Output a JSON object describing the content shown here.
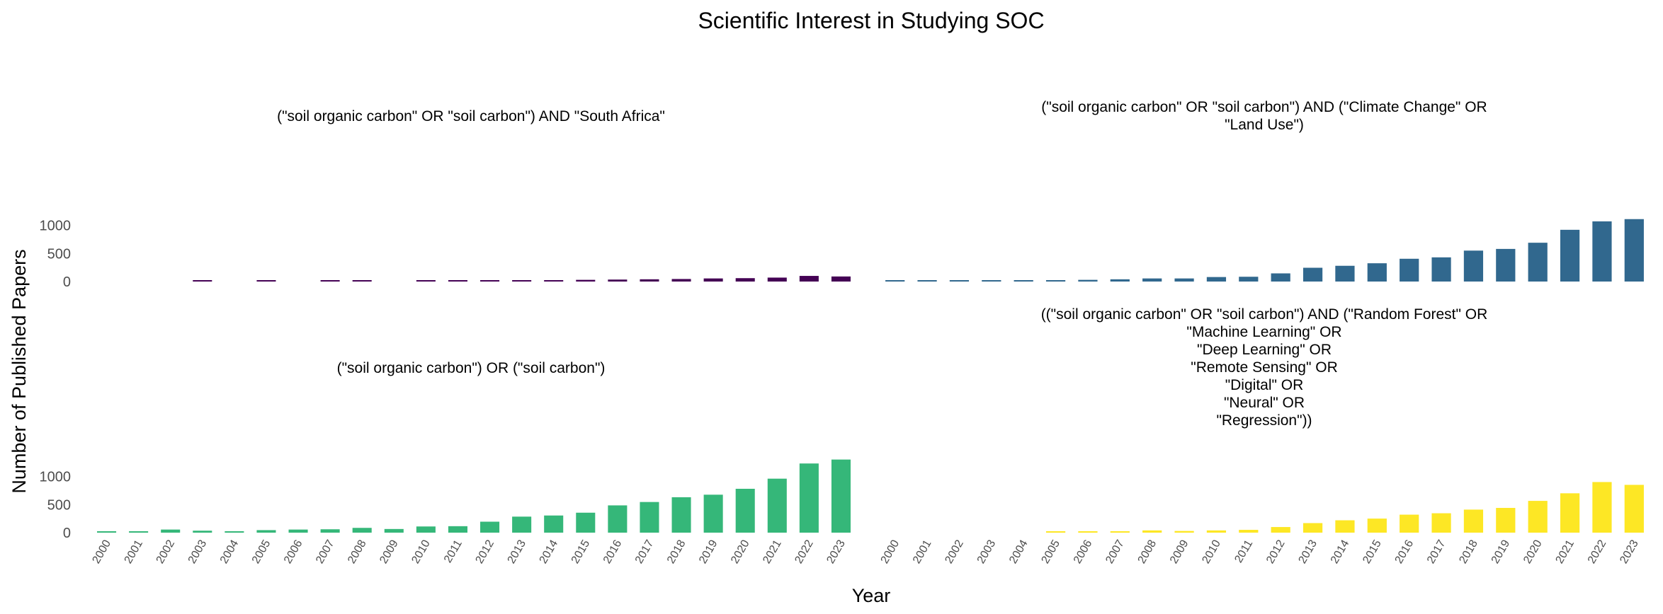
{
  "chart_data": {
    "type": "bar",
    "title": "Scientific Interest in Studying SOC",
    "xlabel": "Year",
    "ylabel": "Number of Published Papers",
    "grid": false,
    "legend": "none",
    "yticks": [
      0,
      500,
      1000
    ],
    "categories": [
      "2000",
      "2001",
      "2002",
      "2003",
      "2004",
      "2005",
      "2006",
      "2007",
      "2008",
      "2009",
      "2010",
      "2011",
      "2012",
      "2013",
      "2014",
      "2015",
      "2016",
      "2017",
      "2018",
      "2019",
      "2020",
      "2021",
      "2022",
      "2023"
    ],
    "panels": [
      {
        "title_lines": [
          "(\"soil organic carbon\" OR \"soil carbon\") AND \"South Africa\""
        ],
        "color": "#440154",
        "ylim": [
          0,
          1300
        ],
        "values": [
          0,
          0,
          0,
          5,
          0,
          5,
          0,
          5,
          5,
          0,
          10,
          10,
          10,
          20,
          25,
          30,
          35,
          40,
          45,
          55,
          60,
          70,
          100,
          90
        ]
      },
      {
        "title_lines": [
          "(\"soil organic carbon\" OR \"soil carbon\") AND (\"Climate Change\" OR",
          "\"Land Use\")"
        ],
        "color": "#31688E",
        "ylim": [
          0,
          1300
        ],
        "values": [
          5,
          5,
          10,
          10,
          15,
          20,
          30,
          40,
          55,
          55,
          80,
          85,
          145,
          245,
          280,
          325,
          405,
          430,
          550,
          580,
          690,
          920,
          1070,
          1110
        ]
      },
      {
        "title_lines": [
          "(\"soil organic carbon\") OR (\"soil carbon\")"
        ],
        "color": "#35B779",
        "ylim": [
          0,
          1300
        ],
        "values": [
          15,
          20,
          55,
          35,
          25,
          45,
          55,
          60,
          85,
          65,
          110,
          115,
          195,
          285,
          305,
          355,
          485,
          545,
          630,
          675,
          780,
          960,
          1230,
          1300
        ]
      },
      {
        "title_lines": [
          "((\"soil organic carbon\" OR \"soil carbon\") AND (\"Random Forest\" OR",
          "\"Machine Learning\" OR",
          "\"Deep Learning\" OR",
          "\"Remote Sensing\" OR",
          "\"Digital\" OR",
          "\"Neural\" OR",
          "\"Regression\"))"
        ],
        "color": "#FDE725",
        "ylim": [
          0,
          1300
        ],
        "values": [
          0,
          0,
          0,
          0,
          0,
          10,
          10,
          20,
          40,
          30,
          40,
          50,
          100,
          170,
          220,
          250,
          320,
          345,
          410,
          440,
          565,
          700,
          900,
          850
        ]
      }
    ]
  }
}
